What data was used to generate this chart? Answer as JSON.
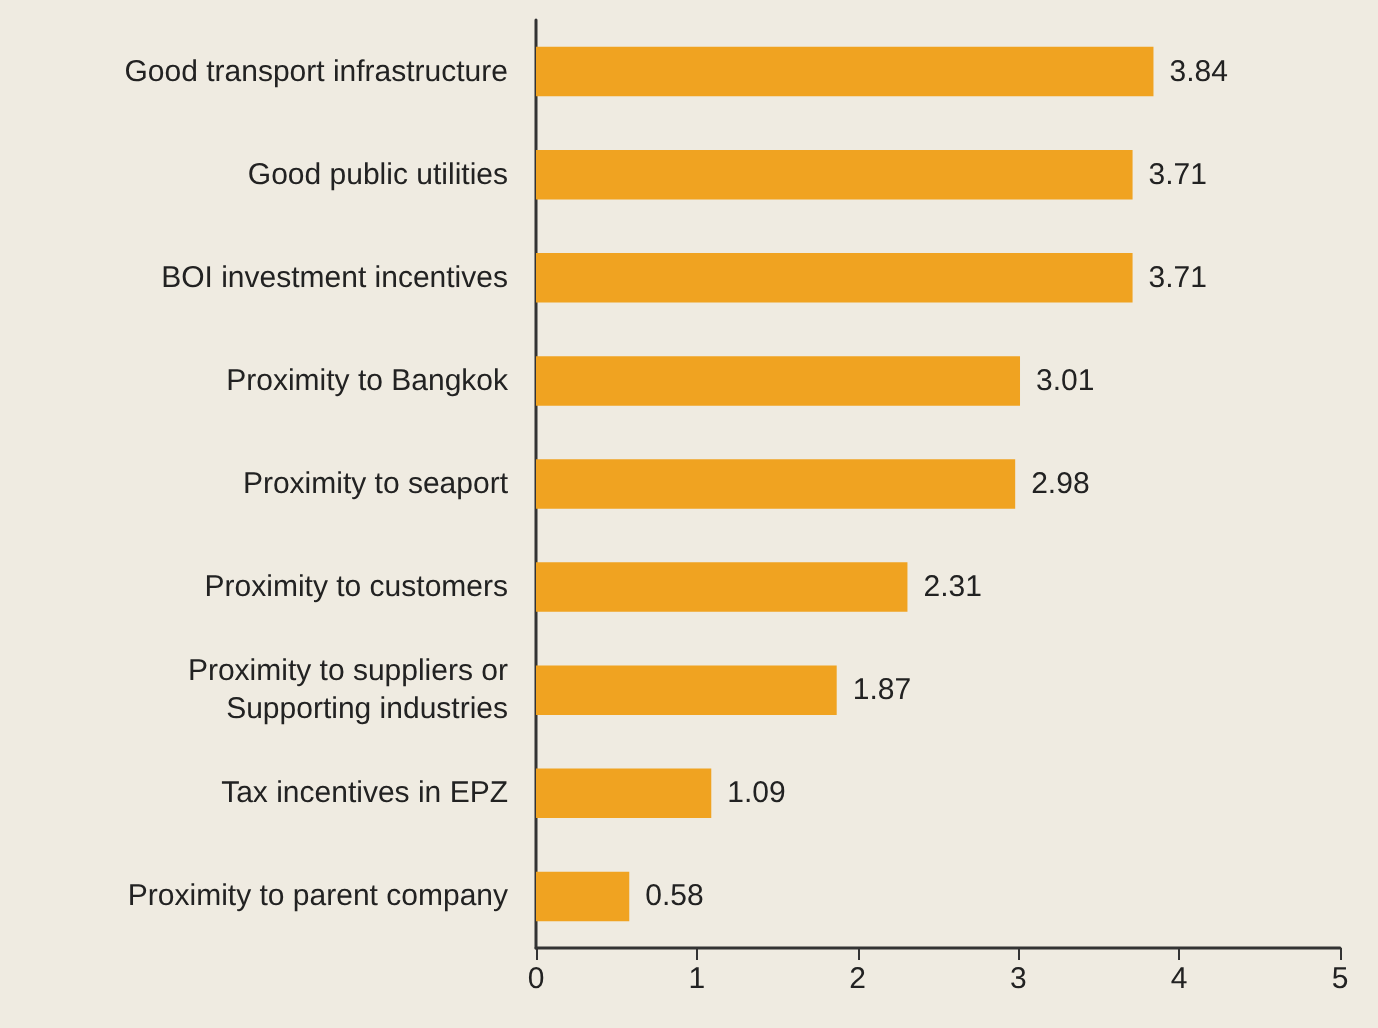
{
  "chart_data": {
    "type": "bar",
    "orientation": "horizontal",
    "categories": [
      "Good transport infrastructure",
      "Good public utilities",
      "BOI investment incentives",
      "Proximity to Bangkok",
      "Proximity to seaport",
      "Proximity to customers",
      "Proximity to suppliers or\nSupporting industries",
      "Tax incentives in EPZ",
      "Proximity to parent company"
    ],
    "values": [
      3.84,
      3.71,
      3.71,
      3.01,
      2.98,
      2.31,
      1.87,
      1.09,
      0.58
    ],
    "color": "#f0a321",
    "xlim": [
      0,
      5
    ],
    "xticks": [
      0,
      1,
      2,
      3,
      4,
      5
    ],
    "data_labels": true
  }
}
